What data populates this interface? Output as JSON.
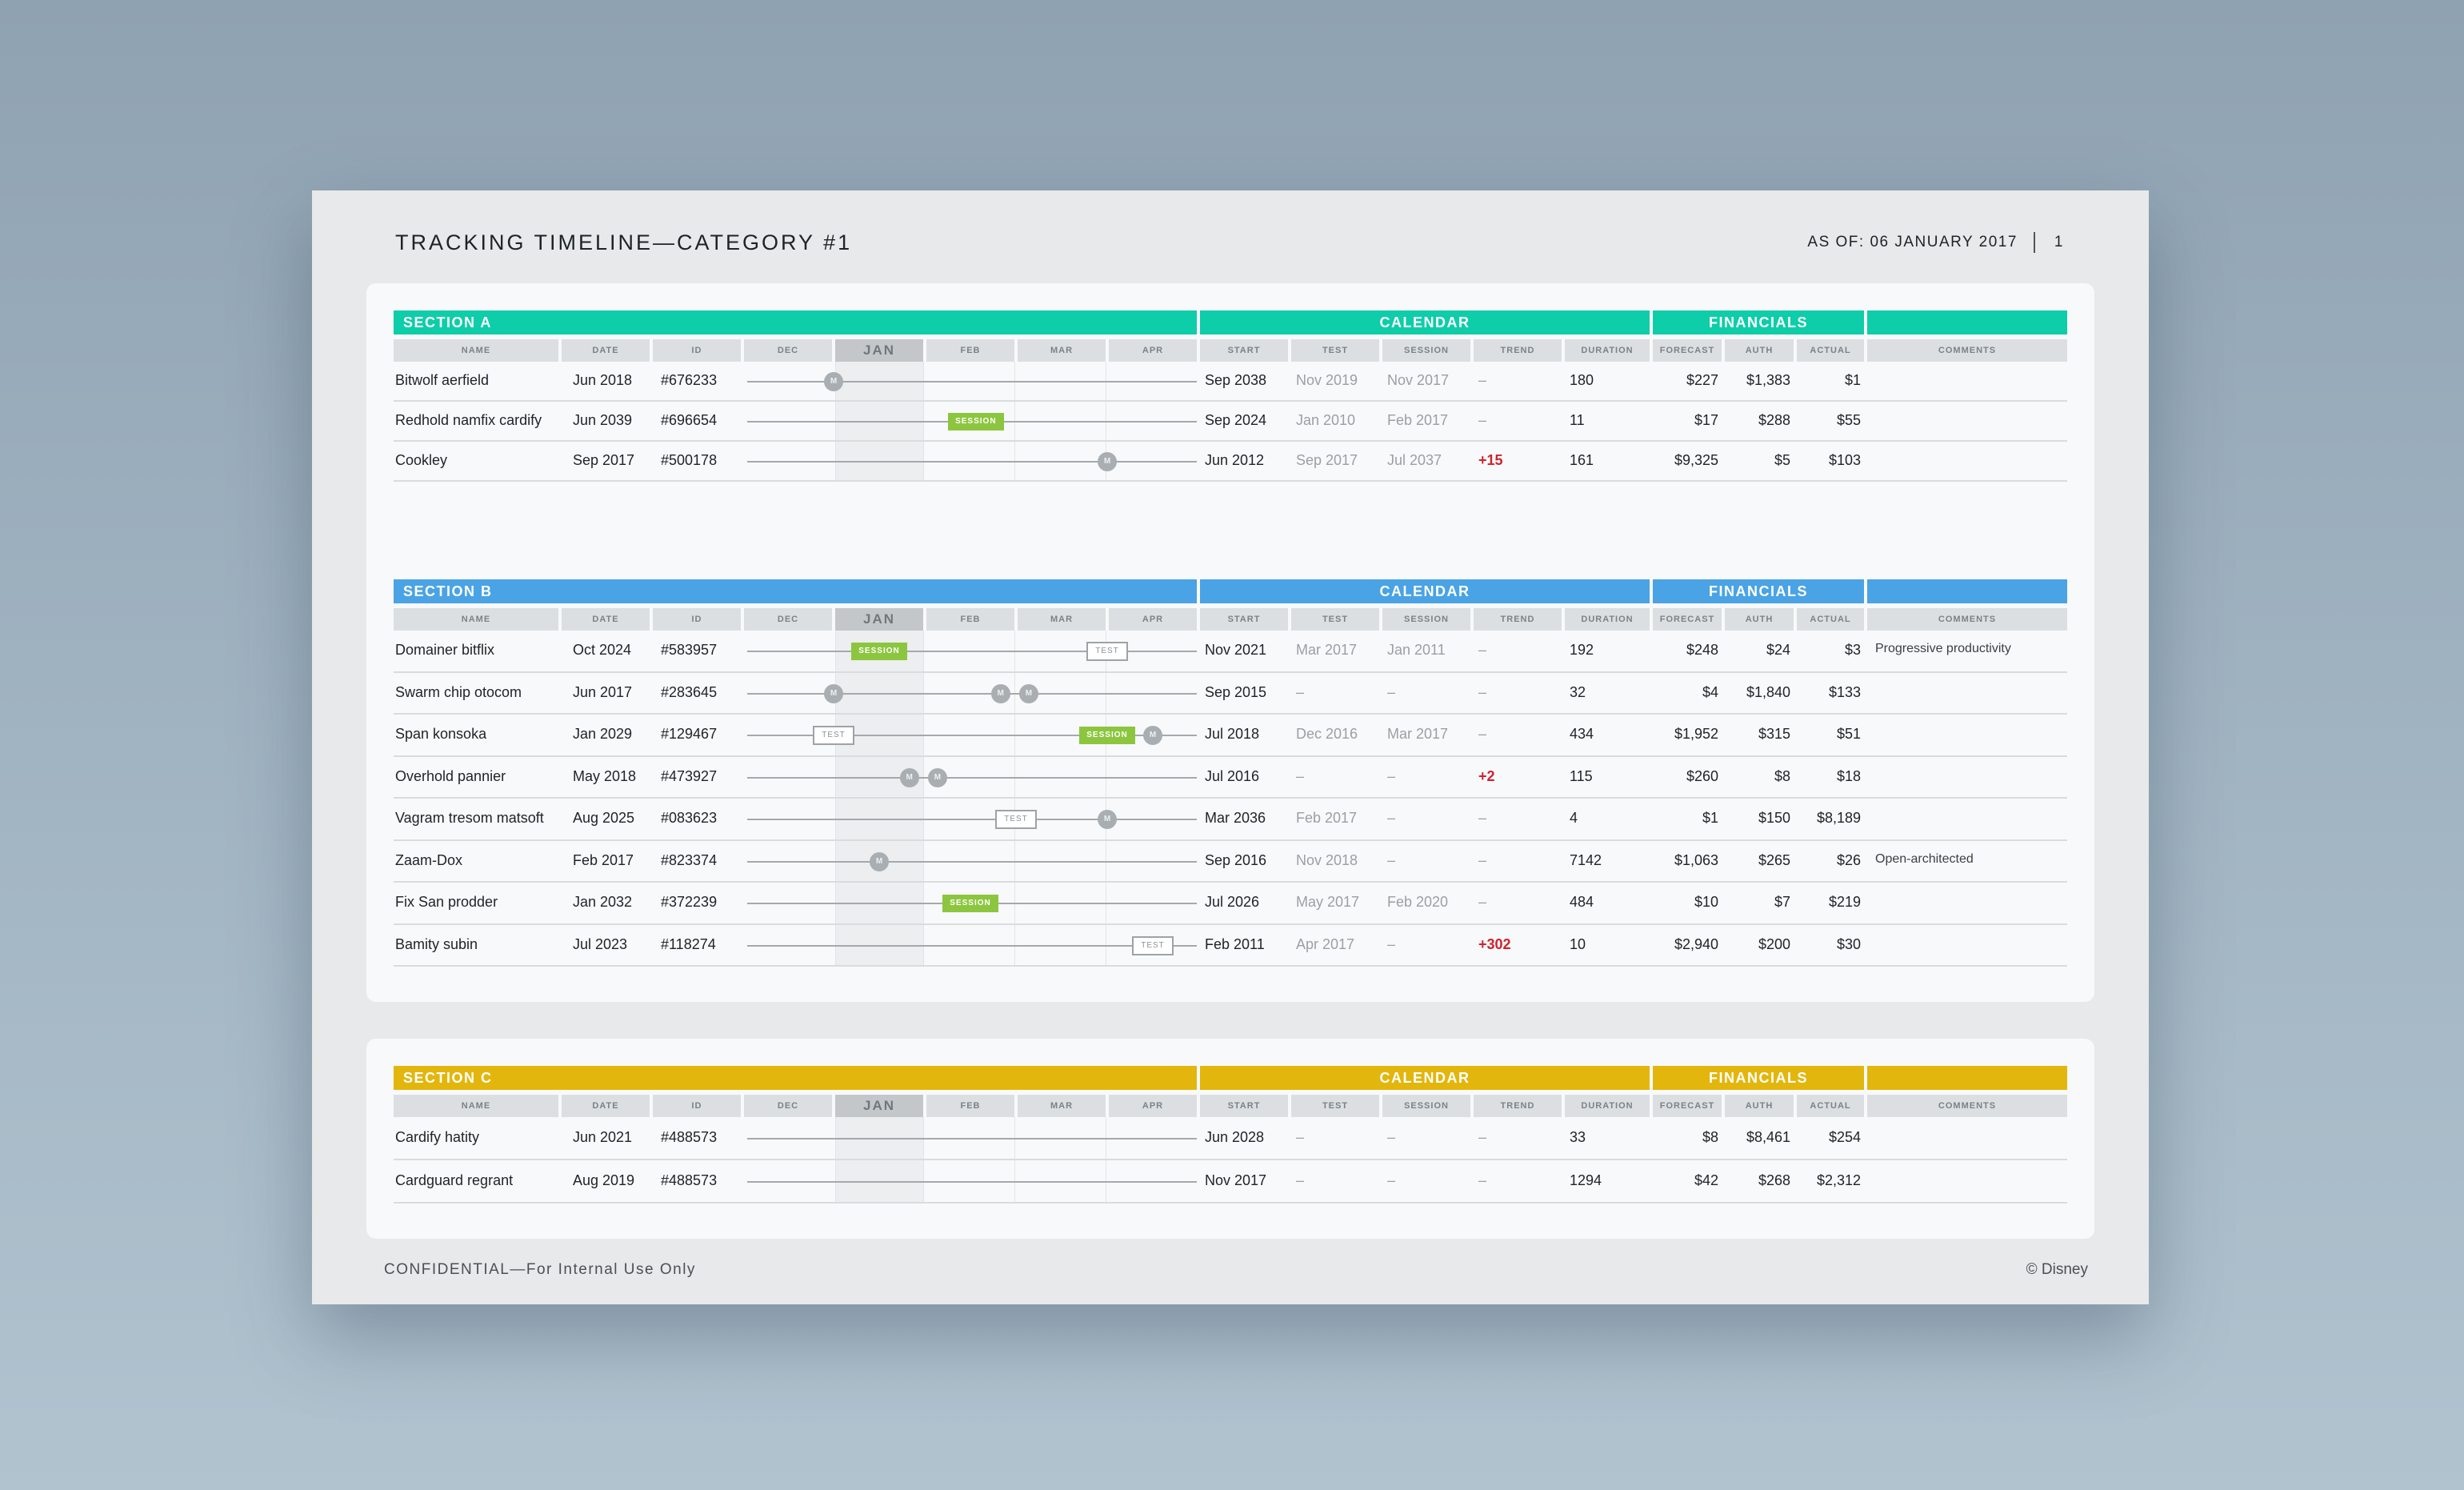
{
  "header": {
    "title": "TRACKING TIMELINE—CATEGORY #1",
    "as_of": "AS OF: 06 JANUARY 2017",
    "page": "1"
  },
  "band_labels": {
    "calendar": "CALENDAR",
    "financials": "FINANCIALS"
  },
  "columns": [
    "NAME",
    "DATE",
    "ID",
    "DEC",
    "JAN",
    "FEB",
    "MAR",
    "APR",
    "START",
    "TEST",
    "SESSION",
    "TREND",
    "DURATION",
    "FORECAST",
    "AUTH",
    "ACTUAL",
    "COMMENTS"
  ],
  "milestone_labels": {
    "m": "M",
    "session": "SESSION",
    "test": "TEST"
  },
  "colors": {
    "section_a": "#0ecda9",
    "section_b": "#4aa3e4",
    "section_c": "#e3b60d",
    "session": "#8cc63f",
    "trend_positive": "#d0212f"
  },
  "sections": [
    {
      "title": "SECTION A",
      "rows": [
        {
          "name": "Bitwolf aerfield",
          "date": "Jun 2018",
          "id": "#676233",
          "milestones": [
            {
              "type": "m",
              "month": -0.5
            }
          ],
          "start": "Sep 2038",
          "test": "Nov 2019",
          "session": "Nov 2017",
          "trend": "–",
          "duration": "180",
          "forecast": "$227",
          "auth": "$1,383",
          "actual": "$1",
          "comment": ""
        },
        {
          "name": "Redhold namfix cardify",
          "date": "Jun 2039",
          "id": "#696654",
          "milestones": [
            {
              "type": "session",
              "month": 1.06
            }
          ],
          "start": "Sep 2024",
          "test": "Jan 2010",
          "session": "Feb 2017",
          "trend": "–",
          "duration": "11",
          "forecast": "$17",
          "auth": "$288",
          "actual": "$55",
          "comment": ""
        },
        {
          "name": "Cookley",
          "date": "Sep 2017",
          "id": "#500178",
          "milestones": [
            {
              "type": "m",
              "month": 2.5
            }
          ],
          "start": "Jun 2012",
          "test": "Sep 2017",
          "session": "Jul 2037",
          "trend": "+15",
          "duration": "161",
          "forecast": "$9,325",
          "auth": "$5",
          "actual": "$103",
          "comment": ""
        }
      ]
    },
    {
      "title": "SECTION B",
      "rows": [
        {
          "name": "Domainer bitflix",
          "date": "Oct 2024",
          "id": "#583957",
          "milestones": [
            {
              "type": "session",
              "month": 0.0
            },
            {
              "type": "test",
              "month": 2.5
            }
          ],
          "start": "Nov 2021",
          "test": "Mar 2017",
          "session": "Jan 2011",
          "trend": "–",
          "duration": "192",
          "forecast": "$248",
          "auth": "$24",
          "actual": "$3",
          "comment": "Progressive productivity"
        },
        {
          "name": "Swarm chip otocom",
          "date": "Jun 2017",
          "id": "#283645",
          "milestones": [
            {
              "type": "m",
              "month": -0.5
            },
            {
              "type": "m",
              "month": 1.33
            },
            {
              "type": "m",
              "month": 1.64
            }
          ],
          "start": "Sep 2015",
          "test": "–",
          "session": "–",
          "trend": "–",
          "duration": "32",
          "forecast": "$4",
          "auth": "$1,840",
          "actual": "$133",
          "comment": ""
        },
        {
          "name": "Span konsoka",
          "date": "Jan 2029",
          "id": "#129467",
          "milestones": [
            {
              "type": "test",
              "month": -0.5
            },
            {
              "type": "session",
              "month": 2.5
            },
            {
              "type": "m",
              "month": 3.0
            }
          ],
          "start": "Jul 2018",
          "test": "Dec 2016",
          "session": "Mar 2017",
          "trend": "–",
          "duration": "434",
          "forecast": "$1,952",
          "auth": "$315",
          "actual": "$51",
          "comment": ""
        },
        {
          "name": "Overhold pannier",
          "date": "May 2018",
          "id": "#473927",
          "milestones": [
            {
              "type": "m",
              "month": 0.33
            },
            {
              "type": "m",
              "month": 0.64
            }
          ],
          "start": "Jul 2016",
          "test": "–",
          "session": "–",
          "trend": "+2",
          "duration": "115",
          "forecast": "$260",
          "auth": "$8",
          "actual": "$18",
          "comment": ""
        },
        {
          "name": "Vagram tresom matsoft",
          "date": "Aug 2025",
          "id": "#083623",
          "milestones": [
            {
              "type": "test",
              "month": 1.5
            },
            {
              "type": "m",
              "month": 2.5
            }
          ],
          "start": "Mar 2036",
          "test": "Feb 2017",
          "session": "–",
          "trend": "–",
          "duration": "4",
          "forecast": "$1",
          "auth": "$150",
          "actual": "$8,189",
          "comment": ""
        },
        {
          "name": "Zaam-Dox",
          "date": "Feb 2017",
          "id": "#823374",
          "milestones": [
            {
              "type": "m",
              "month": 0.0
            }
          ],
          "start": "Sep 2016",
          "test": "Nov 2018",
          "session": "–",
          "trend": "–",
          "duration": "7142",
          "forecast": "$1,063",
          "auth": "$265",
          "actual": "$26",
          "comment": "Open-architected"
        },
        {
          "name": "Fix San prodder",
          "date": "Jan 2032",
          "id": "#372239",
          "milestones": [
            {
              "type": "session",
              "month": 1.0
            }
          ],
          "start": "Jul 2026",
          "test": "May 2017",
          "session": "Feb 2020",
          "trend": "–",
          "duration": "484",
          "forecast": "$10",
          "auth": "$7",
          "actual": "$219",
          "comment": ""
        },
        {
          "name": "Bamity subin",
          "date": "Jul 2023",
          "id": "#118274",
          "milestones": [
            {
              "type": "test",
              "month": 3.0
            }
          ],
          "start": "Feb 2011",
          "test": "Apr 2017",
          "session": "–",
          "trend": "+302",
          "duration": "10",
          "forecast": "$2,940",
          "auth": "$200",
          "actual": "$30",
          "comment": ""
        }
      ]
    },
    {
      "title": "SECTION C",
      "rows": [
        {
          "name": "Cardify hatity",
          "date": "Jun 2021",
          "id": "#488573",
          "milestones": [],
          "start": "Jun 2028",
          "test": "–",
          "session": "–",
          "trend": "–",
          "duration": "33",
          "forecast": "$8",
          "auth": "$8,461",
          "actual": "$254",
          "comment": ""
        },
        {
          "name": "Cardguard regrant",
          "date": "Aug 2019",
          "id": "#488573",
          "milestones": [],
          "start": "Nov 2017",
          "test": "–",
          "session": "–",
          "trend": "–",
          "duration": "1294",
          "forecast": "$42",
          "auth": "$268",
          "actual": "$2,312",
          "comment": ""
        }
      ]
    }
  ],
  "footer": {
    "confidential": "CONFIDENTIAL—For Internal Use Only",
    "copyright": "© Disney"
  }
}
